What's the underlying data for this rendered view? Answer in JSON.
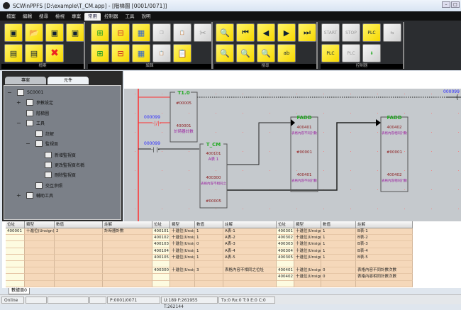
{
  "window": {
    "title": "SCWinPPFS [D:\\example\\T_CM.app] - [階梯圖 [0001/0071]]",
    "logo": "PLC"
  },
  "menu": [
    "檔案",
    "編輯",
    "搜尋",
    "檢視",
    "專案",
    "常用",
    "控制器",
    "工具",
    "說明"
  ],
  "menu_active": 5,
  "ribbon": {
    "groups": [
      "檔案",
      "編輯",
      "搜尋",
      "控制器"
    ],
    "start_label": "START",
    "stop_label": "STOP"
  },
  "left_panel": {
    "tabs": [
      "專案",
      "元件"
    ],
    "active_tab": 1,
    "tree": [
      {
        "label": "SC0001",
        "expander": "−",
        "icon": "plc-icon"
      },
      {
        "label": "參數設定",
        "expander": "+",
        "icon": "settings-icon"
      },
      {
        "label": "階梯圖",
        "expander": "",
        "icon": "ladder-icon"
      },
      {
        "label": "工具",
        "expander": "−",
        "icon": "tools-icon"
      },
      {
        "label": "註解",
        "expander": "",
        "icon": "comment-icon"
      },
      {
        "label": "監視頁",
        "expander": "−",
        "icon": "monitor-icon"
      },
      {
        "label": "新增監視頁",
        "expander": "",
        "icon": "add-monitor-icon"
      },
      {
        "label": "更改監視頁名稱",
        "expander": "",
        "icon": "rename-monitor-icon"
      },
      {
        "label": "刪除監視頁",
        "expander": "",
        "icon": "delete-monitor-icon"
      },
      {
        "label": "交互參照",
        "expander": "",
        "icon": "cross-reference-icon"
      },
      {
        "label": "輔助工具",
        "expander": "+",
        "icon": "toolbox-icon"
      }
    ]
  },
  "ladder": {
    "contact_nc": "000099",
    "contact_no": "000099",
    "coil": "000099",
    "t10": {
      "name": "T1.0",
      "preset": "#00005",
      "reg": "400001",
      "comment": "計時器計數"
    },
    "tcm": {
      "name": "T_CM",
      "reg1": "400101",
      "c1": "A表 1",
      "reg2": "400300",
      "c2": "表格內容不相同之",
      "len": "#00005"
    },
    "fadd1": {
      "name": "FADD",
      "reg1": "400401",
      "c1": "表格內容不同計數",
      "k": "#00001",
      "reg2": "400401",
      "c2": "表格內容不同計數"
    },
    "fadd2": {
      "name": "FADD",
      "reg1": "400402",
      "c1": "表格內容相同計數",
      "k": "#00001",
      "reg2": "400402",
      "c2": "表格內容相同計數"
    }
  },
  "table": {
    "headers": [
      "位址",
      "類型",
      "數值",
      "註解"
    ],
    "groups": [
      {
        "rows": [
          [
            "400001",
            "十進位(Unsign)",
            "2",
            "計時器計數"
          ],
          [
            "",
            "",
            "",
            ""
          ],
          [
            "",
            "",
            "",
            ""
          ],
          [
            "",
            "",
            "",
            ""
          ],
          [
            "",
            "",
            "",
            ""
          ],
          [
            "",
            "",
            "",
            ""
          ],
          [
            "",
            "",
            "",
            ""
          ],
          [
            "",
            "",
            "",
            ""
          ],
          [
            "",
            "",
            "",
            ""
          ]
        ]
      },
      {
        "rows": [
          [
            "400101",
            "十進位(Unsig",
            "1",
            "A表-1"
          ],
          [
            "400102",
            "十進位(Unsig",
            "1",
            "A表-2"
          ],
          [
            "400103",
            "十進位(Unsig",
            "0",
            "A表-3"
          ],
          [
            "400104",
            "十進位(Unsig",
            "1",
            "A表-4"
          ],
          [
            "400105",
            "十進位(Unsig",
            "1",
            "A表-5"
          ],
          [
            "",
            "",
            "",
            ""
          ],
          [
            "400300",
            "十進位(Unsig",
            "3",
            "表格內容不相同之位址"
          ],
          [
            "",
            "",
            "",
            ""
          ],
          [
            "",
            "",
            "",
            ""
          ]
        ]
      },
      {
        "rows": [
          [
            "400301",
            "十進位(Unsign",
            "1",
            "B表-1"
          ],
          [
            "400302",
            "十進位(Unsign",
            "1",
            "B表-2"
          ],
          [
            "400303",
            "十進位(Unsign",
            "1",
            "B表-3"
          ],
          [
            "400304",
            "十進位(Unsign",
            "1",
            "B表-4"
          ],
          [
            "400305",
            "十進位(Unsign",
            "1",
            "B表-5"
          ],
          [
            "",
            "",
            "",
            ""
          ],
          [
            "400401",
            "十進位(Unsign",
            "0",
            "表格內容不同計數次數"
          ],
          [
            "400402",
            "十進位(Unsign",
            "0",
            "表格內容相同計數次數"
          ],
          [
            "",
            "",
            "",
            ""
          ]
        ]
      }
    ]
  },
  "sheet_tab": "數據頁0",
  "status": {
    "mode": "Online",
    "page": "P:0001/0071",
    "memory": "U:189 F:261955 T:262144",
    "comm": "Tx:0 Rx:0 T:0 E:0 C:0"
  },
  "colors": {
    "button": "#f7d800",
    "ribbon": "#2b2d30",
    "ladder_bg": "#c5c9cd",
    "rail": "#ff3030",
    "instr_name": "#22aa22",
    "comment": "#9a1fa0",
    "address": "#8b1a1a",
    "contact_label": "#2b2bff"
  }
}
